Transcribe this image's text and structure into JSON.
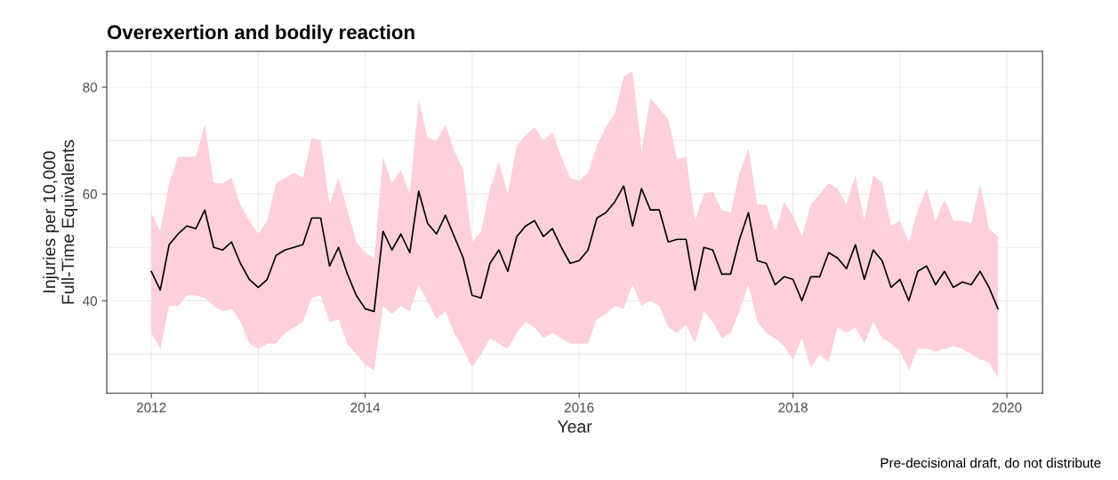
{
  "chart_data": {
    "type": "line",
    "title": "Overexertion and bodily reaction",
    "xlabel": "Year",
    "ylabel": "Injuries per 10,000\nFull-Time Equivalents",
    "annotations": [
      "Pre-decisional draft, do not distribute"
    ],
    "x": [
      "2012-01",
      "2012-02",
      "2012-03",
      "2012-04",
      "2012-05",
      "2012-06",
      "2012-07",
      "2012-08",
      "2012-09",
      "2012-10",
      "2012-11",
      "2012-12",
      "2013-01",
      "2013-02",
      "2013-03",
      "2013-04",
      "2013-05",
      "2013-06",
      "2013-07",
      "2013-08",
      "2013-09",
      "2013-10",
      "2013-11",
      "2013-12",
      "2014-01",
      "2014-02",
      "2014-03",
      "2014-04",
      "2014-05",
      "2014-06",
      "2014-07",
      "2014-08",
      "2014-09",
      "2014-10",
      "2014-11",
      "2014-12",
      "2015-01",
      "2015-02",
      "2015-03",
      "2015-04",
      "2015-05",
      "2015-06",
      "2015-07",
      "2015-08",
      "2015-09",
      "2015-10",
      "2015-11",
      "2015-12",
      "2016-01",
      "2016-02",
      "2016-03",
      "2016-04",
      "2016-05",
      "2016-06",
      "2016-07",
      "2016-08",
      "2016-09",
      "2016-10",
      "2016-11",
      "2016-12",
      "2017-01",
      "2017-02",
      "2017-03",
      "2017-04",
      "2017-05",
      "2017-06",
      "2017-07",
      "2017-08",
      "2017-09",
      "2017-10",
      "2017-11",
      "2017-12",
      "2018-01",
      "2018-02",
      "2018-03",
      "2018-04",
      "2018-05",
      "2018-06",
      "2018-07",
      "2018-08",
      "2018-09",
      "2018-10",
      "2018-11",
      "2018-12",
      "2019-01",
      "2019-02",
      "2019-03",
      "2019-04",
      "2019-05",
      "2019-06",
      "2019-07",
      "2019-08",
      "2019-09",
      "2019-10",
      "2019-11",
      "2019-12"
    ],
    "series": [
      {
        "color": "#000000",
        "values": [
          45.5,
          42,
          50.5,
          52.5,
          54,
          53.5,
          57,
          50,
          49.5,
          51,
          47,
          44,
          42.5,
          44,
          48.5,
          49.5,
          50,
          50.5,
          55.5,
          55.5,
          46.5,
          50,
          45,
          41,
          38.5,
          38,
          53,
          49.5,
          52.5,
          49,
          60.5,
          54.5,
          52.5,
          56,
          52,
          48,
          41,
          40.5,
          47,
          49.5,
          45.5,
          52,
          54,
          55,
          52,
          53.5,
          50,
          47,
          47.5,
          49.5,
          55.5,
          56.5,
          58.5,
          61.5,
          54,
          61,
          57,
          57,
          51,
          51.5,
          51.5,
          42,
          50,
          49.5,
          45,
          45,
          51.5,
          56.5,
          47.5,
          47,
          43,
          44.5,
          44,
          40,
          44.5,
          44.5,
          49,
          48,
          46,
          50.5,
          44,
          49.5,
          47.5,
          42.5,
          44,
          40,
          45.5,
          46.5,
          43,
          45.5,
          42.5,
          43.5,
          43,
          45.5,
          42.5,
          38.5
        ],
        "upper": [
          56.5,
          53,
          62,
          67,
          67,
          67,
          73,
          62,
          62,
          63,
          58,
          55,
          52.5,
          55,
          62,
          63,
          64,
          63,
          70.5,
          70,
          58,
          63,
          57,
          51,
          49,
          48,
          67,
          62,
          64.5,
          60,
          77.5,
          70.5,
          70,
          73,
          68,
          64.5,
          51,
          53,
          61,
          66,
          60,
          69,
          71,
          72.5,
          70,
          71.5,
          67,
          63,
          62.5,
          64,
          69,
          72.5,
          75,
          82,
          83,
          68,
          78,
          76,
          74,
          66.5,
          67,
          55,
          60,
          60.5,
          57,
          56.5,
          64,
          68.5,
          58,
          58,
          53,
          58.5,
          56,
          52,
          58,
          60,
          62,
          61,
          58,
          63.5,
          55,
          63.5,
          62,
          54,
          55,
          51,
          57,
          61,
          55,
          59,
          55,
          55,
          54.5,
          62,
          53.5,
          52
        ],
        "lower": [
          34,
          31,
          39,
          39,
          41,
          41,
          40.5,
          39,
          38,
          38.5,
          36,
          32,
          31,
          32,
          32,
          34,
          35,
          36,
          40.5,
          41,
          36,
          36.5,
          32,
          30,
          28,
          27,
          39,
          37.5,
          39,
          38,
          43,
          40,
          36.5,
          38,
          34,
          31,
          27.5,
          30,
          33,
          32,
          31,
          34,
          36,
          35,
          33,
          34,
          33,
          32,
          32,
          32,
          36.5,
          37.5,
          39,
          38.5,
          43,
          39,
          40,
          39,
          35,
          34,
          35.5,
          32,
          38,
          36,
          33,
          34,
          38,
          43,
          36,
          34,
          33,
          31.5,
          29,
          33,
          27.5,
          30,
          28.5,
          35,
          34,
          35,
          32,
          36,
          33,
          32,
          30.5,
          27,
          31,
          31,
          30.5,
          31,
          31.5,
          31,
          30,
          29,
          28.5,
          25.5
        ]
      }
    ],
    "xlim": [
      "2011-08",
      "2020-05"
    ],
    "xticks": [
      {
        "value": "2012",
        "label": "2012"
      },
      {
        "value": "2013",
        "label": null
      },
      {
        "value": "2014",
        "label": "2014"
      },
      {
        "value": "2015",
        "label": null
      },
      {
        "value": "2016",
        "label": "2016"
      },
      {
        "value": "2017",
        "label": null
      },
      {
        "value": "2018",
        "label": "2018"
      },
      {
        "value": "2019",
        "label": null
      },
      {
        "value": "2020",
        "label": "2020"
      }
    ],
    "ylim": [
      22.7,
      86.7
    ],
    "yticks": [
      {
        "value": 30,
        "label": null
      },
      40,
      {
        "value": 50,
        "label": null
      },
      60,
      {
        "value": 70,
        "label": null
      },
      80
    ],
    "grid": true,
    "marker": "none",
    "line_style": "solid"
  }
}
